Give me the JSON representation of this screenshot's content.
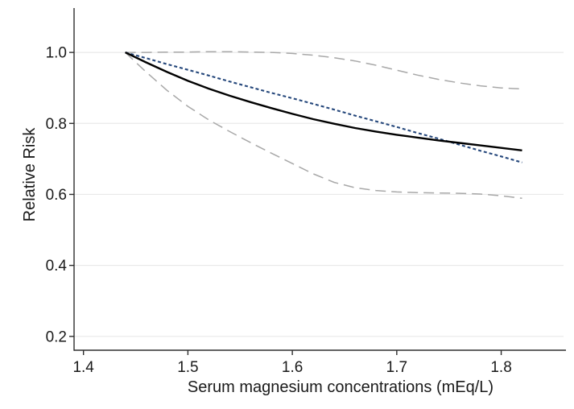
{
  "figure": {
    "background": "#ffffff",
    "axis_color": "#2e2e2e",
    "grid_color": "#e9e9e9",
    "text_color": "#1a1a1a"
  },
  "chart_data": {
    "type": "line",
    "title": "",
    "xlabel": "Serum magnesium concentrations (mEq/L)",
    "ylabel": "Relative Risk",
    "x_tick_labels": [
      "1.4",
      "1.5",
      "1.6",
      "1.7",
      "1.8"
    ],
    "y_tick_labels": [
      "0.2",
      "0.4",
      "0.6",
      "0.8",
      "1.0"
    ],
    "x_tick_values": [
      1.4,
      1.5,
      1.6,
      1.7,
      1.8
    ],
    "y_tick_values": [
      0.2,
      0.4,
      0.6,
      0.8,
      1.0
    ],
    "xlim": [
      1.391,
      1.862
    ],
    "ylim": [
      0.161,
      1.125
    ],
    "grid": "horizontal-gridlines-only",
    "legend": "none",
    "reference_point": {
      "x": 1.44,
      "y": 1.0
    },
    "x": [
      1.44,
      1.46,
      1.48,
      1.5,
      1.52,
      1.54,
      1.56,
      1.58,
      1.6,
      1.62,
      1.64,
      1.66,
      1.68,
      1.7,
      1.72,
      1.74,
      1.76,
      1.78,
      1.8,
      1.82
    ],
    "series": [
      {
        "id": "estimate-solid-black",
        "style": "solid",
        "color": "#000000",
        "width": 2.4,
        "dash": "",
        "values": [
          1.0,
          0.972,
          0.945,
          0.92,
          0.898,
          0.878,
          0.86,
          0.843,
          0.827,
          0.812,
          0.799,
          0.787,
          0.777,
          0.768,
          0.76,
          0.752,
          0.745,
          0.738,
          0.731,
          0.724
        ]
      },
      {
        "id": "trend-dashed-blue",
        "style": "short-dash",
        "color": "#25477b",
        "width": 2.1,
        "dash": "4,3",
        "values": [
          1.0,
          0.984,
          0.967,
          0.951,
          0.935,
          0.918,
          0.902,
          0.886,
          0.871,
          0.855,
          0.839,
          0.822,
          0.806,
          0.79,
          0.773,
          0.757,
          0.74,
          0.723,
          0.707,
          0.69
        ]
      },
      {
        "id": "upper-band-dashed-gray",
        "style": "long-dash",
        "color": "#a8a8a8",
        "width": 1.5,
        "dash": "13,7",
        "values": [
          1.0,
          1.0,
          1.001,
          1.001,
          1.002,
          1.002,
          1.001,
          1.0,
          0.997,
          0.992,
          0.985,
          0.976,
          0.964,
          0.95,
          0.936,
          0.924,
          0.914,
          0.906,
          0.9,
          0.897
        ]
      },
      {
        "id": "lower-band-dashed-gray",
        "style": "long-dash",
        "color": "#a8a8a8",
        "width": 1.5,
        "dash": "13,7",
        "values": [
          1.0,
          0.945,
          0.893,
          0.848,
          0.81,
          0.777,
          0.746,
          0.716,
          0.687,
          0.658,
          0.634,
          0.619,
          0.611,
          0.607,
          0.605,
          0.604,
          0.603,
          0.601,
          0.596,
          0.589
        ]
      }
    ]
  }
}
